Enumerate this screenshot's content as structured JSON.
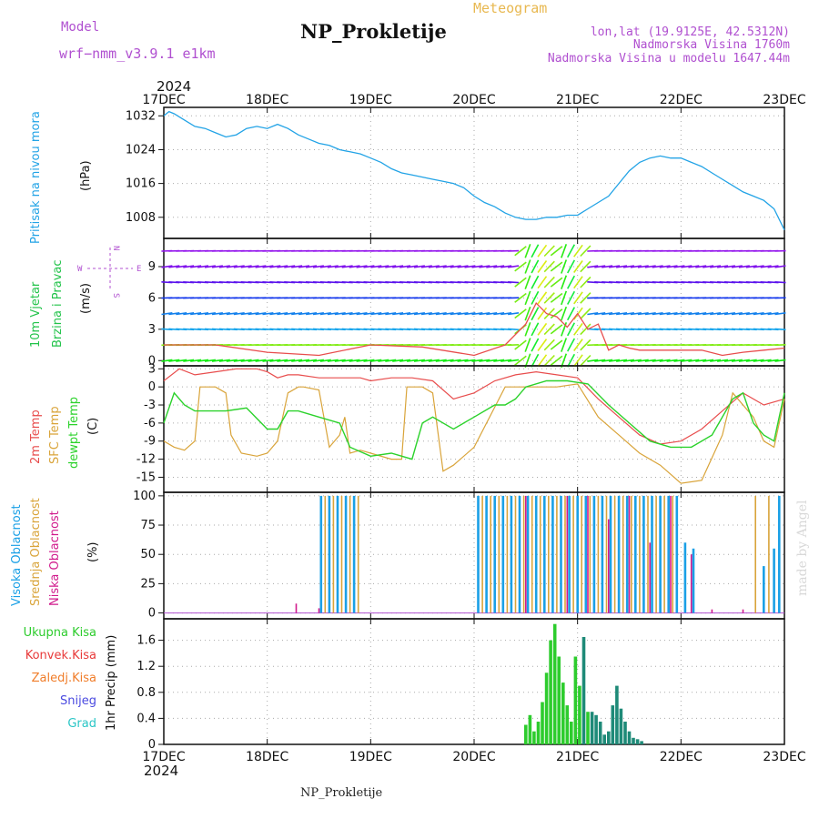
{
  "header": {
    "model_label": "Model",
    "model_name": "wrf−nmm_v3.9.1  e1km",
    "station_title": "NP_Prokletije",
    "product": "Meteogram",
    "lonlat": "lon,lat (19.9125E, 42.5312N)",
    "elevation": "Nadmorska Visina 1760m",
    "model_elevation": "Nadmorska Visina u modelu 1647.44m",
    "footer_title": "NP_Prokletije",
    "credit": "made by Angel",
    "year_top": "2024",
    "year_bottom": "2024"
  },
  "colors": {
    "pressure": "#22a3e6",
    "temp2m": "#e84d4d",
    "sfc": "#d9a43a",
    "dewpt": "#2bd22b",
    "high_cloud": "#1aa0e6",
    "mid_cloud": "#d9a43a",
    "low_cloud": "#d11a8c",
    "total_precip": "#2dcc2d",
    "conv_precip": "#e83a3a",
    "frz_precip": "#f07d2a",
    "snow": "#4a4ae0",
    "grad": "#2ac6c6",
    "purple_text": "#b050d0",
    "gold_text": "#e8b850"
  },
  "chart_data": [
    {
      "type": "line",
      "panel": "pressure",
      "ylabel": "Pritisak na nivou mora",
      "unit": "(hPa)",
      "xlim": [
        0,
        6
      ],
      "ylim": [
        1003,
        1034
      ],
      "yticks": [
        1008,
        1016,
        1024,
        1032
      ],
      "x_tick_labels": [
        "17DEC",
        "18DEC",
        "19DEC",
        "20DEC",
        "21DEC",
        "22DEC",
        "23DEC"
      ],
      "grid": true,
      "series": [
        {
          "x": [
            0,
            0.05,
            0.1,
            0.2,
            0.3,
            0.4,
            0.5,
            0.6,
            0.7,
            0.8,
            0.9,
            1.0,
            1.1,
            1.2,
            1.3,
            1.4,
            1.5,
            1.6,
            1.7,
            1.8,
            1.9,
            2.0,
            2.1,
            2.2,
            2.3,
            2.4,
            2.5,
            2.6,
            2.7,
            2.8,
            2.9,
            3.0,
            3.1,
            3.2,
            3.3,
            3.4,
            3.5,
            3.6,
            3.7,
            3.8,
            3.9,
            4.0,
            4.1,
            4.2,
            4.3,
            4.4,
            4.5,
            4.6,
            4.7,
            4.8,
            4.9,
            5.0,
            5.1,
            5.2,
            5.3,
            5.4,
            5.5,
            5.6,
            5.7,
            5.8,
            5.9,
            6.0
          ],
          "values": [
            1032,
            1033,
            1032.5,
            1031,
            1029.5,
            1029,
            1028,
            1027,
            1027.5,
            1029,
            1029.5,
            1029,
            1030,
            1029,
            1027.5,
            1026.5,
            1025.5,
            1025,
            1024,
            1023.5,
            1023,
            1022,
            1021,
            1019.5,
            1018.5,
            1018,
            1017.5,
            1017,
            1016.5,
            1016,
            1015,
            1013,
            1011.5,
            1010.5,
            1009,
            1008,
            1007.5,
            1007.5,
            1008,
            1008,
            1008.5,
            1008.5,
            1010,
            1011.5,
            1013,
            1016,
            1019,
            1021,
            1022,
            1022.5,
            1022,
            1022,
            1021,
            1020,
            1018.5,
            1017,
            1015.5,
            1014,
            1013,
            1012,
            1010,
            1005
          ]
        }
      ]
    },
    {
      "type": "line",
      "panel": "wind",
      "ylabel": "10m Vjetar Brzina i Pravac",
      "unit": "(m/s)",
      "compass": {
        "n": "N",
        "s": "S",
        "w": "W",
        "e": "E"
      },
      "xlim": [
        0,
        6
      ],
      "ylim": [
        -0.5,
        11.7
      ],
      "yticks": [
        0,
        3,
        6,
        9
      ],
      "grid": true,
      "series": [
        {
          "name": "wind speed",
          "x": [
            0,
            0.5,
            1.0,
            1.5,
            2.0,
            2.5,
            3.0,
            3.3,
            3.5,
            3.6,
            3.7,
            3.8,
            3.9,
            4.0,
            4.1,
            4.2,
            4.3,
            4.4,
            4.5,
            4.6,
            4.8,
            5.0,
            5.2,
            5.4,
            5.6,
            5.8,
            6.0
          ],
          "values": [
            1.5,
            1.5,
            0.8,
            0.5,
            1.5,
            1.3,
            0.5,
            1.5,
            3.5,
            5.5,
            4.5,
            4.2,
            3.2,
            4.5,
            3.0,
            3.5,
            1.0,
            1.5,
            1.2,
            1.0,
            1.0,
            1.0,
            1.0,
            0.5,
            0.8,
            1.0,
            1.2
          ]
        }
      ]
    },
    {
      "type": "line",
      "panel": "temperature",
      "unit": "(C)",
      "xlim": [
        0,
        6
      ],
      "ylim": [
        -17.5,
        3.5
      ],
      "yticks": [
        -15,
        -12,
        -9,
        -6,
        -3,
        0,
        3
      ],
      "grid": true,
      "series": [
        {
          "name": "2m Temp",
          "x": [
            0,
            0.15,
            0.3,
            0.5,
            0.7,
            0.9,
            1.0,
            1.1,
            1.2,
            1.3,
            1.5,
            1.7,
            1.9,
            2.0,
            2.2,
            2.4,
            2.6,
            2.8,
            3.0,
            3.2,
            3.4,
            3.6,
            3.8,
            4.0,
            4.2,
            4.4,
            4.6,
            4.8,
            5.0,
            5.2,
            5.4,
            5.6,
            5.8,
            6.0
          ],
          "values": [
            1,
            3,
            2,
            2.5,
            3,
            3,
            2.5,
            1.5,
            2,
            2,
            1.5,
            1.5,
            1.5,
            1,
            1.5,
            1.5,
            1,
            -2,
            -1,
            1,
            2,
            2.5,
            2,
            1.5,
            -2,
            -5,
            -8,
            -9.5,
            -9,
            -7,
            -4,
            -1,
            -3,
            -2
          ]
        },
        {
          "name": "SFC Temp",
          "x": [
            0,
            0.1,
            0.2,
            0.3,
            0.35,
            0.5,
            0.6,
            0.65,
            0.75,
            0.9,
            1.0,
            1.1,
            1.2,
            1.3,
            1.35,
            1.5,
            1.6,
            1.7,
            1.75,
            1.8,
            1.9,
            2.0,
            2.2,
            2.3,
            2.35,
            2.5,
            2.6,
            2.7,
            2.8,
            3.0,
            3.3,
            3.45,
            3.5,
            3.8,
            4.0,
            4.2,
            4.4,
            4.6,
            4.8,
            5.0,
            5.2,
            5.4,
            5.5,
            5.7,
            5.8,
            5.9,
            6.0
          ],
          "values": [
            -9,
            -10,
            -10.5,
            -9,
            0,
            0,
            -1,
            -8,
            -11,
            -11.5,
            -11,
            -9,
            -1,
            0,
            0,
            -0.5,
            -10,
            -8,
            -5,
            -11,
            -10.5,
            -11,
            -12,
            -12,
            0,
            0,
            -1,
            -14,
            -13,
            -10,
            0,
            0,
            0,
            0,
            0.5,
            -5,
            -8,
            -11,
            -13,
            -16,
            -15.5,
            -8,
            -1,
            -5,
            -9,
            -10,
            -2
          ]
        },
        {
          "name": "dewpt Temp",
          "x": [
            0,
            0.1,
            0.2,
            0.3,
            0.4,
            0.6,
            0.8,
            1.0,
            1.1,
            1.2,
            1.3,
            1.5,
            1.7,
            1.8,
            2.0,
            2.2,
            2.4,
            2.5,
            2.6,
            2.8,
            3.0,
            3.2,
            3.3,
            3.4,
            3.5,
            3.7,
            3.9,
            4.1,
            4.3,
            4.5,
            4.7,
            4.9,
            5.1,
            5.3,
            5.5,
            5.6,
            5.7,
            5.8,
            5.9,
            6.0
          ],
          "values": [
            -6,
            -1,
            -3,
            -4,
            -4,
            -4,
            -3.5,
            -7,
            -7,
            -4,
            -4,
            -5,
            -6,
            -10,
            -11.5,
            -11,
            -12,
            -6,
            -5,
            -7,
            -5,
            -3,
            -3,
            -2,
            0,
            1,
            1,
            0.5,
            -3,
            -6,
            -9,
            -10,
            -10,
            -8,
            -2,
            -1,
            -6,
            -8,
            -9,
            -1
          ]
        }
      ]
    },
    {
      "type": "bar",
      "panel": "cloud",
      "unit": "(%)",
      "xlim": [
        0,
        6
      ],
      "ylim": [
        -5,
        103
      ],
      "yticks": [
        0,
        25,
        50,
        75,
        100
      ],
      "grid": true,
      "series": [
        {
          "name": "Visoka Oblacnost",
          "x": [
            1.52,
            1.6,
            1.68,
            1.76,
            1.84,
            3.04,
            3.12,
            3.2,
            3.28,
            3.36,
            3.44,
            3.52,
            3.6,
            3.68,
            3.76,
            3.84,
            3.92,
            4.0,
            4.08,
            4.16,
            4.24,
            4.32,
            4.4,
            4.48,
            4.56,
            4.64,
            4.72,
            4.8,
            4.88,
            4.96,
            5.04,
            5.12,
            5.8,
            5.9,
            5.95
          ],
          "values": [
            100,
            100,
            100,
            100,
            100,
            100,
            100,
            100,
            100,
            100,
            100,
            100,
            100,
            100,
            100,
            100,
            100,
            100,
            100,
            100,
            100,
            100,
            100,
            100,
            100,
            100,
            100,
            100,
            100,
            100,
            60,
            55,
            40,
            55,
            100
          ]
        },
        {
          "name": "Srednja Oblacnost",
          "x": [
            1.56,
            1.64,
            1.72,
            1.8,
            1.88,
            3.08,
            3.16,
            3.24,
            3.32,
            3.4,
            3.48,
            3.56,
            3.64,
            3.72,
            3.8,
            3.88,
            3.96,
            4.04,
            4.12,
            4.2,
            4.28,
            4.36,
            4.44,
            4.52,
            4.6,
            4.68,
            4.76,
            4.84,
            4.92,
            5.72,
            5.85
          ],
          "values": [
            100,
            100,
            100,
            100,
            100,
            100,
            100,
            100,
            100,
            100,
            100,
            100,
            100,
            100,
            100,
            100,
            100,
            100,
            100,
            100,
            100,
            100,
            100,
            100,
            100,
            100,
            100,
            100,
            100,
            100,
            100
          ]
        },
        {
          "name": "Niska Oblacnost",
          "x": [
            1.28,
            1.5,
            3.5,
            3.9,
            4.1,
            4.3,
            4.5,
            4.7,
            4.9,
            5.1,
            5.3,
            5.6
          ],
          "values": [
            8,
            4,
            100,
            100,
            100,
            80,
            100,
            60,
            100,
            50,
            3,
            3
          ]
        }
      ]
    },
    {
      "type": "bar",
      "panel": "precipitation",
      "ylabel": "1hr Precip (mm)",
      "xlim": [
        0,
        6
      ],
      "ylim": [
        0,
        1.93
      ],
      "yticks": [
        0,
        0.4,
        0.8,
        1.2,
        1.6
      ],
      "x_tick_labels": [
        "17DEC",
        "18DEC",
        "19DEC",
        "20DEC",
        "21DEC",
        "22DEC",
        "23DEC"
      ],
      "grid": true,
      "series": [
        {
          "name": "Ukupna Kisa",
          "x": [
            3.5,
            3.54,
            3.58,
            3.62,
            3.66,
            3.7,
            3.74,
            3.78,
            3.82,
            3.86,
            3.9,
            3.94,
            3.98,
            4.02,
            4.1
          ],
          "values": [
            0.3,
            0.45,
            0.2,
            0.35,
            0.65,
            1.1,
            1.6,
            1.85,
            1.35,
            0.95,
            0.6,
            0.35,
            1.35,
            0.9,
            0.5
          ]
        },
        {
          "name": "Grad",
          "x": [
            4.06,
            4.14,
            4.18,
            4.22,
            4.26,
            4.3,
            4.34,
            4.38,
            4.42,
            4.46,
            4.5,
            4.54,
            4.58,
            4.62
          ],
          "values": [
            1.65,
            0.5,
            0.45,
            0.35,
            0.15,
            0.2,
            0.6,
            0.9,
            0.55,
            0.35,
            0.2,
            0.1,
            0.08,
            0.05
          ]
        }
      ],
      "legend": [
        "Ukupna Kisa",
        "Konvek.Kisa",
        "Zaledj.Kisa",
        "Snijeg",
        "Grad"
      ]
    }
  ],
  "side_labels": {
    "pressure": "Pritisak na nivou mora",
    "pressure_unit": "(hPa)",
    "wind_1": "10m Vjetar",
    "wind_2": "Brzina i Pravac",
    "wind_unit": "(m/s)",
    "temp_2m": "2m Temp",
    "temp_sfc": "SFC Temp",
    "temp_dew": "dewpt Temp",
    "temp_unit": "(C)",
    "cloud_high": "Visoka Oblacnost",
    "cloud_mid": "Srednja Oblacnost",
    "cloud_low": "Niska Oblacnost",
    "cloud_unit": "(%)",
    "precip_unit": "1hr Precip (mm)",
    "legend_total": "Ukupna Kisa",
    "legend_conv": "Konvek.Kisa",
    "legend_frz": "Zaledj.Kisa",
    "legend_snow": "Snijeg",
    "legend_grad": "Grad"
  }
}
